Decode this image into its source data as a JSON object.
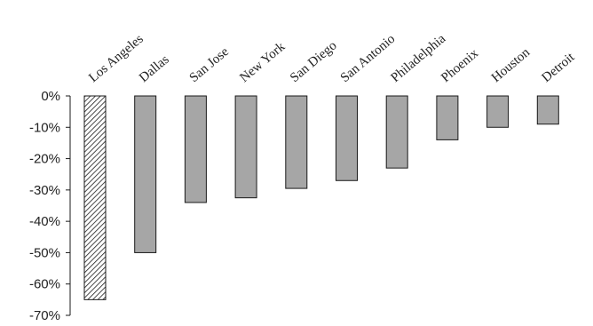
{
  "chart_data": {
    "type": "bar",
    "categories": [
      "Los Angeles",
      "Dallas",
      "San Jose",
      "New York",
      "San Diego",
      "San Antonio",
      "Philadelphia",
      "Phoenix",
      "Houston",
      "Detroit"
    ],
    "values": [
      -65,
      -50,
      -34,
      -32.5,
      -29.5,
      -27,
      -23,
      -14,
      -10,
      -9
    ],
    "highlight_category": "Los Angeles",
    "yticks": [
      "0%",
      "-10%",
      "-20%",
      "-30%",
      "-40%",
      "-50%",
      "-60%",
      "-70%"
    ],
    "ylim": [
      -70,
      0
    ],
    "grid": false,
    "legend": "none",
    "colors": {
      "bar_fill": "#a6a6a6",
      "bar_stroke": "#1a1a1a",
      "hatch": "#1a1a1a",
      "axis": "#1a1a1a"
    }
  }
}
